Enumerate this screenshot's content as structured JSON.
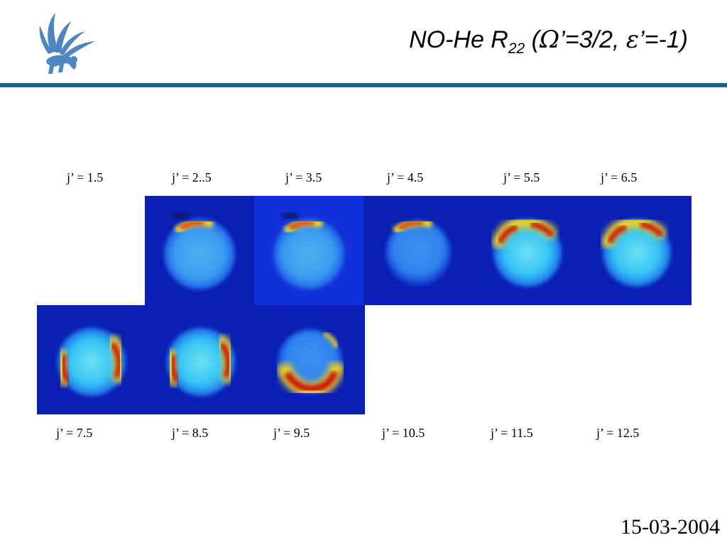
{
  "slide": {
    "title_main": "NO-He R",
    "title_sub": "22",
    "title_open": " (",
    "omega": "Ω",
    "title_mid": "’=3/2, ",
    "epsilon": "ε",
    "title_end": "’=-1)",
    "date": "15-03-2004",
    "colors": {
      "rule": "#1a5f8a",
      "logo": "#4e86bf",
      "tile_bg": "#0a22c8"
    }
  },
  "top_labels": [
    "j’ = 1.5",
    "j’ = 2..5",
    "j’ = 3.5",
    "j’ = 4.5",
    "j’ = 5.5",
    "j’ = 6.5"
  ],
  "bottom_labels": [
    "j’ = 7.5",
    "j’ = 8.5",
    "j’ = 9.5",
    "j’ = 10.5",
    "j’ = 11.5",
    "j’ = 12.5"
  ],
  "images": [
    {
      "j": "2.5",
      "pattern": "top-arc"
    },
    {
      "j": "3.5",
      "pattern": "top-arc"
    },
    {
      "j": "4.5",
      "pattern": "top-arc"
    },
    {
      "j": "5.5",
      "pattern": "top-arc-wide"
    },
    {
      "j": "6.5",
      "pattern": "top-arc-wide"
    },
    {
      "j": "7.5",
      "pattern": "side-arcs"
    },
    {
      "j": "8.5",
      "pattern": "side-arcs"
    },
    {
      "j": "9.5",
      "pattern": "bottom-arc"
    }
  ]
}
